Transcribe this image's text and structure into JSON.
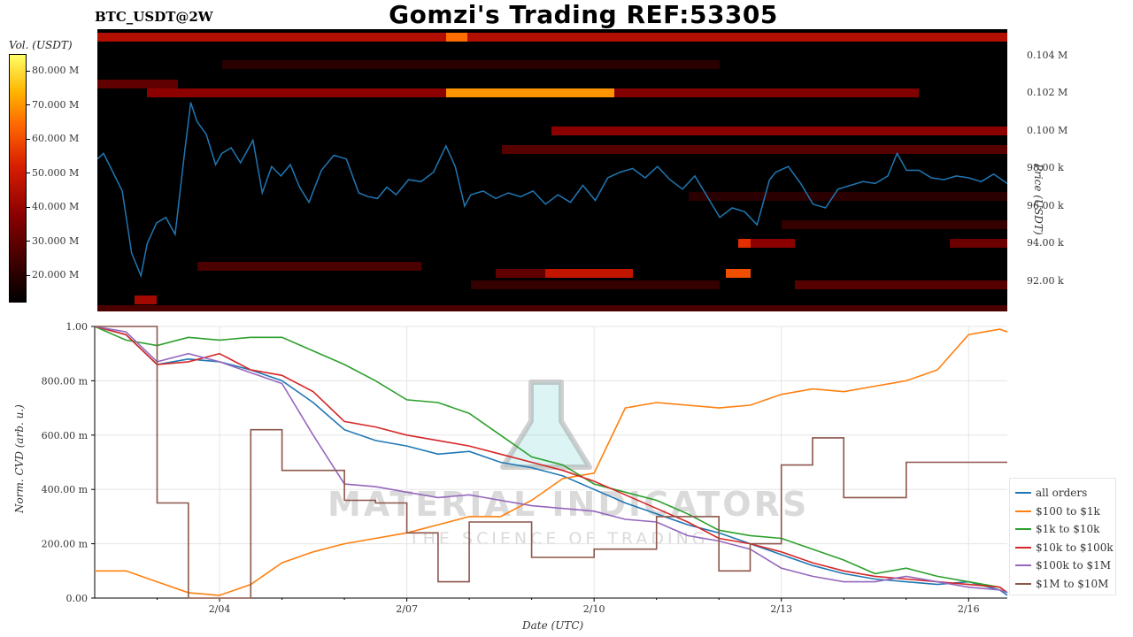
{
  "header": {
    "title": "Gomzi's Trading REF:53305",
    "symbol": "BTC_USDT@2W"
  },
  "watermark": {
    "name": "MATERIAL INDICATORS",
    "tagline": "THE SCIENCE OF TRADING"
  },
  "colors": {
    "all_orders": "#1f77b4",
    "r100_1k": "#ff7f0e",
    "r1k_10k": "#2ca02c",
    "r10k_100k": "#d62728",
    "r100k_1m": "#9467bd",
    "r1m_10m": "#8c564b"
  },
  "chart_data": [
    {
      "type": "heatmap",
      "colorbar_label": "Vol. (USDT)",
      "colorbar_ticks": [
        "20.000 M",
        "30.000 M",
        "40.000 M",
        "50.000 M",
        "60.000 M",
        "70.000 M",
        "80.000 M"
      ],
      "colorbar_range": [
        12,
        85
      ],
      "ylabel": "Price (USDT)",
      "ylim": [
        90400,
        105400
      ],
      "price_ticks": [
        "92.00 k",
        "94.00 k",
        "96.00 k",
        "98.00 k",
        "0.100 M",
        "0.102 M",
        "0.104 M"
      ],
      "price_tick_values": [
        92000,
        94000,
        96000,
        98000,
        100000,
        102000,
        104000
      ],
      "xlim": [
        2.0,
        16.62
      ],
      "bands": [
        {
          "price": 105000,
          "x0": 2.0,
          "x1": 16.62,
          "vol": 45
        },
        {
          "price": 105000,
          "x0": 7.6,
          "x1": 7.95,
          "vol": 65
        },
        {
          "price": 102000,
          "x0": 7.6,
          "x1": 10.3,
          "vol": 70
        },
        {
          "price": 102000,
          "x0": 2.8,
          "x1": 7.6,
          "vol": 38
        },
        {
          "price": 102000,
          "x0": 10.3,
          "x1": 15.2,
          "vol": 36
        },
        {
          "price": 102500,
          "x0": 2.0,
          "x1": 3.3,
          "vol": 30
        },
        {
          "price": 100000,
          "x0": 9.3,
          "x1": 16.62,
          "vol": 38
        },
        {
          "price": 99000,
          "x0": 8.5,
          "x1": 16.62,
          "vol": 28
        },
        {
          "price": 94000,
          "x0": 12.3,
          "x1": 12.5,
          "vol": 55
        },
        {
          "price": 94000,
          "x0": 12.5,
          "x1": 13.2,
          "vol": 38
        },
        {
          "price": 94000,
          "x0": 15.7,
          "x1": 16.62,
          "vol": 32
        },
        {
          "price": 92400,
          "x0": 9.2,
          "x1": 10.6,
          "vol": 48
        },
        {
          "price": 92400,
          "x0": 12.1,
          "x1": 12.5,
          "vol": 60
        },
        {
          "price": 92400,
          "x0": 8.4,
          "x1": 9.2,
          "vol": 30
        },
        {
          "price": 92800,
          "x0": 3.6,
          "x1": 7.2,
          "vol": 26
        },
        {
          "price": 91800,
          "x0": 13.2,
          "x1": 16.62,
          "vol": 28
        },
        {
          "price": 91800,
          "x0": 8.0,
          "x1": 12.0,
          "vol": 22
        },
        {
          "price": 91000,
          "x0": 2.6,
          "x1": 2.95,
          "vol": 42
        },
        {
          "price": 90500,
          "x0": 2.0,
          "x1": 16.62,
          "vol": 26
        },
        {
          "price": 103500,
          "x0": 4.0,
          "x1": 12.0,
          "vol": 20
        },
        {
          "price": 95000,
          "x0": 13.0,
          "x1": 16.62,
          "vol": 22
        },
        {
          "price": 96500,
          "x0": 11.5,
          "x1": 16.62,
          "vol": 20
        }
      ],
      "price_series": {
        "name": "BTC/USDT",
        "x": [
          2.0,
          2.1,
          2.25,
          2.4,
          2.55,
          2.7,
          2.8,
          2.95,
          3.1,
          3.25,
          3.4,
          3.5,
          3.6,
          3.75,
          3.9,
          4.0,
          4.15,
          4.3,
          4.5,
          4.65,
          4.8,
          4.95,
          5.1,
          5.25,
          5.4,
          5.6,
          5.8,
          6.0,
          6.2,
          6.35,
          6.5,
          6.65,
          6.8,
          7.0,
          7.2,
          7.4,
          7.6,
          7.75,
          7.9,
          8.0,
          8.2,
          8.4,
          8.6,
          8.8,
          9.0,
          9.2,
          9.4,
          9.6,
          9.8,
          10.0,
          10.2,
          10.4,
          10.6,
          10.8,
          11.0,
          11.2,
          11.4,
          11.6,
          11.8,
          12.0,
          12.2,
          12.4,
          12.6,
          12.8,
          12.9,
          13.1,
          13.3,
          13.5,
          13.7,
          13.9,
          14.1,
          14.3,
          14.5,
          14.7,
          14.85,
          15.0,
          15.2,
          15.4,
          15.6,
          15.8,
          16.0,
          16.2,
          16.4,
          16.62
        ],
        "y": [
          98500,
          98800,
          97800,
          96800,
          93500,
          92300,
          94000,
          95100,
          95400,
          94500,
          98800,
          101500,
          100500,
          99800,
          98200,
          98800,
          99100,
          98300,
          99500,
          96700,
          98100,
          97600,
          98200,
          97000,
          96200,
          97900,
          98700,
          98500,
          96700,
          96500,
          96400,
          97000,
          96600,
          97400,
          97300,
          97800,
          99200,
          98100,
          96000,
          96600,
          96800,
          96400,
          96700,
          96500,
          96800,
          96100,
          96600,
          96200,
          97100,
          96300,
          97500,
          97800,
          98000,
          97500,
          98100,
          97400,
          96900,
          97600,
          96500,
          95400,
          95900,
          95700,
          95000,
          97400,
          97800,
          98100,
          97200,
          96100,
          95900,
          96900,
          97100,
          97300,
          97200,
          97600,
          98800,
          97900,
          97900,
          97500,
          97400,
          97600,
          97500,
          97300,
          97700,
          97200
        ]
      }
    },
    {
      "type": "line",
      "ylabel": "Norm. CVD (arb. u.)",
      "xlabel": "Date (UTC)",
      "ylim": [
        0,
        1.0
      ],
      "xlim": [
        2.0,
        16.62
      ],
      "ytick_labels": [
        "0.00",
        "200.00 m",
        "400.00 m",
        "600.00 m",
        "800.00 m",
        "1.00"
      ],
      "ytick_values": [
        0,
        0.2,
        0.4,
        0.6,
        0.8,
        1.0
      ],
      "xtick_labels": [
        "2/04",
        "2/07",
        "2/10",
        "2/13",
        "2/16"
      ],
      "xtick_values": [
        4,
        7,
        10,
        13,
        16
      ],
      "x": [
        2.0,
        2.5,
        3.0,
        3.5,
        4.0,
        4.5,
        5.0,
        5.5,
        6.0,
        6.5,
        7.0,
        7.5,
        8.0,
        8.5,
        9.0,
        9.5,
        10.0,
        10.5,
        11.0,
        11.5,
        12.0,
        12.5,
        13.0,
        13.5,
        14.0,
        14.5,
        15.0,
        15.5,
        16.0,
        16.5,
        16.62
      ],
      "series": [
        {
          "name": "all orders",
          "key": "all_orders",
          "values": [
            1.0,
            0.97,
            0.86,
            0.88,
            0.87,
            0.84,
            0.8,
            0.72,
            0.62,
            0.58,
            0.56,
            0.53,
            0.54,
            0.5,
            0.48,
            0.45,
            0.4,
            0.35,
            0.31,
            0.27,
            0.24,
            0.2,
            0.16,
            0.12,
            0.09,
            0.07,
            0.06,
            0.05,
            0.06,
            0.03,
            0.01
          ]
        },
        {
          "name": "$100 to $1k",
          "key": "r100_1k",
          "values": [
            0.1,
            0.1,
            0.06,
            0.02,
            0.01,
            0.05,
            0.13,
            0.17,
            0.2,
            0.22,
            0.24,
            0.27,
            0.3,
            0.3,
            0.36,
            0.44,
            0.46,
            0.7,
            0.72,
            0.71,
            0.7,
            0.71,
            0.75,
            0.77,
            0.76,
            0.78,
            0.8,
            0.84,
            0.97,
            0.99,
            0.98
          ]
        },
        {
          "name": "$1k to $10k",
          "key": "r1k_10k",
          "values": [
            1.0,
            0.95,
            0.93,
            0.96,
            0.95,
            0.96,
            0.96,
            0.91,
            0.86,
            0.8,
            0.73,
            0.72,
            0.68,
            0.6,
            0.52,
            0.49,
            0.42,
            0.39,
            0.36,
            0.31,
            0.25,
            0.23,
            0.22,
            0.18,
            0.14,
            0.09,
            0.11,
            0.08,
            0.06,
            0.04,
            0.02
          ]
        },
        {
          "name": "$10k to $100k",
          "key": "r10k_100k",
          "values": [
            1.0,
            0.97,
            0.86,
            0.87,
            0.9,
            0.84,
            0.82,
            0.76,
            0.65,
            0.63,
            0.6,
            0.58,
            0.56,
            0.53,
            0.5,
            0.47,
            0.43,
            0.38,
            0.33,
            0.28,
            0.22,
            0.2,
            0.17,
            0.13,
            0.1,
            0.08,
            0.07,
            0.06,
            0.05,
            0.04,
            0.02
          ]
        },
        {
          "name": "$100k to $1M",
          "key": "r100k_1m",
          "values": [
            1.0,
            0.98,
            0.87,
            0.9,
            0.87,
            0.83,
            0.79,
            0.6,
            0.42,
            0.41,
            0.39,
            0.37,
            0.38,
            0.36,
            0.34,
            0.33,
            0.32,
            0.29,
            0.28,
            0.23,
            0.21,
            0.18,
            0.11,
            0.08,
            0.06,
            0.06,
            0.08,
            0.06,
            0.04,
            0.03,
            0.02
          ]
        },
        {
          "name": "$1M to $10M",
          "key": "r1m_10m",
          "values": [
            1.0,
            1.0,
            0.35,
            0.0,
            0.0,
            0.62,
            0.47,
            0.47,
            0.36,
            0.35,
            0.24,
            0.06,
            0.28,
            0.28,
            0.15,
            0.15,
            0.18,
            0.18,
            0.3,
            0.3,
            0.1,
            0.2,
            0.49,
            0.59,
            0.37,
            0.37,
            0.5,
            0.5,
            0.5,
            0.5,
            0.5
          ]
        }
      ]
    }
  ]
}
